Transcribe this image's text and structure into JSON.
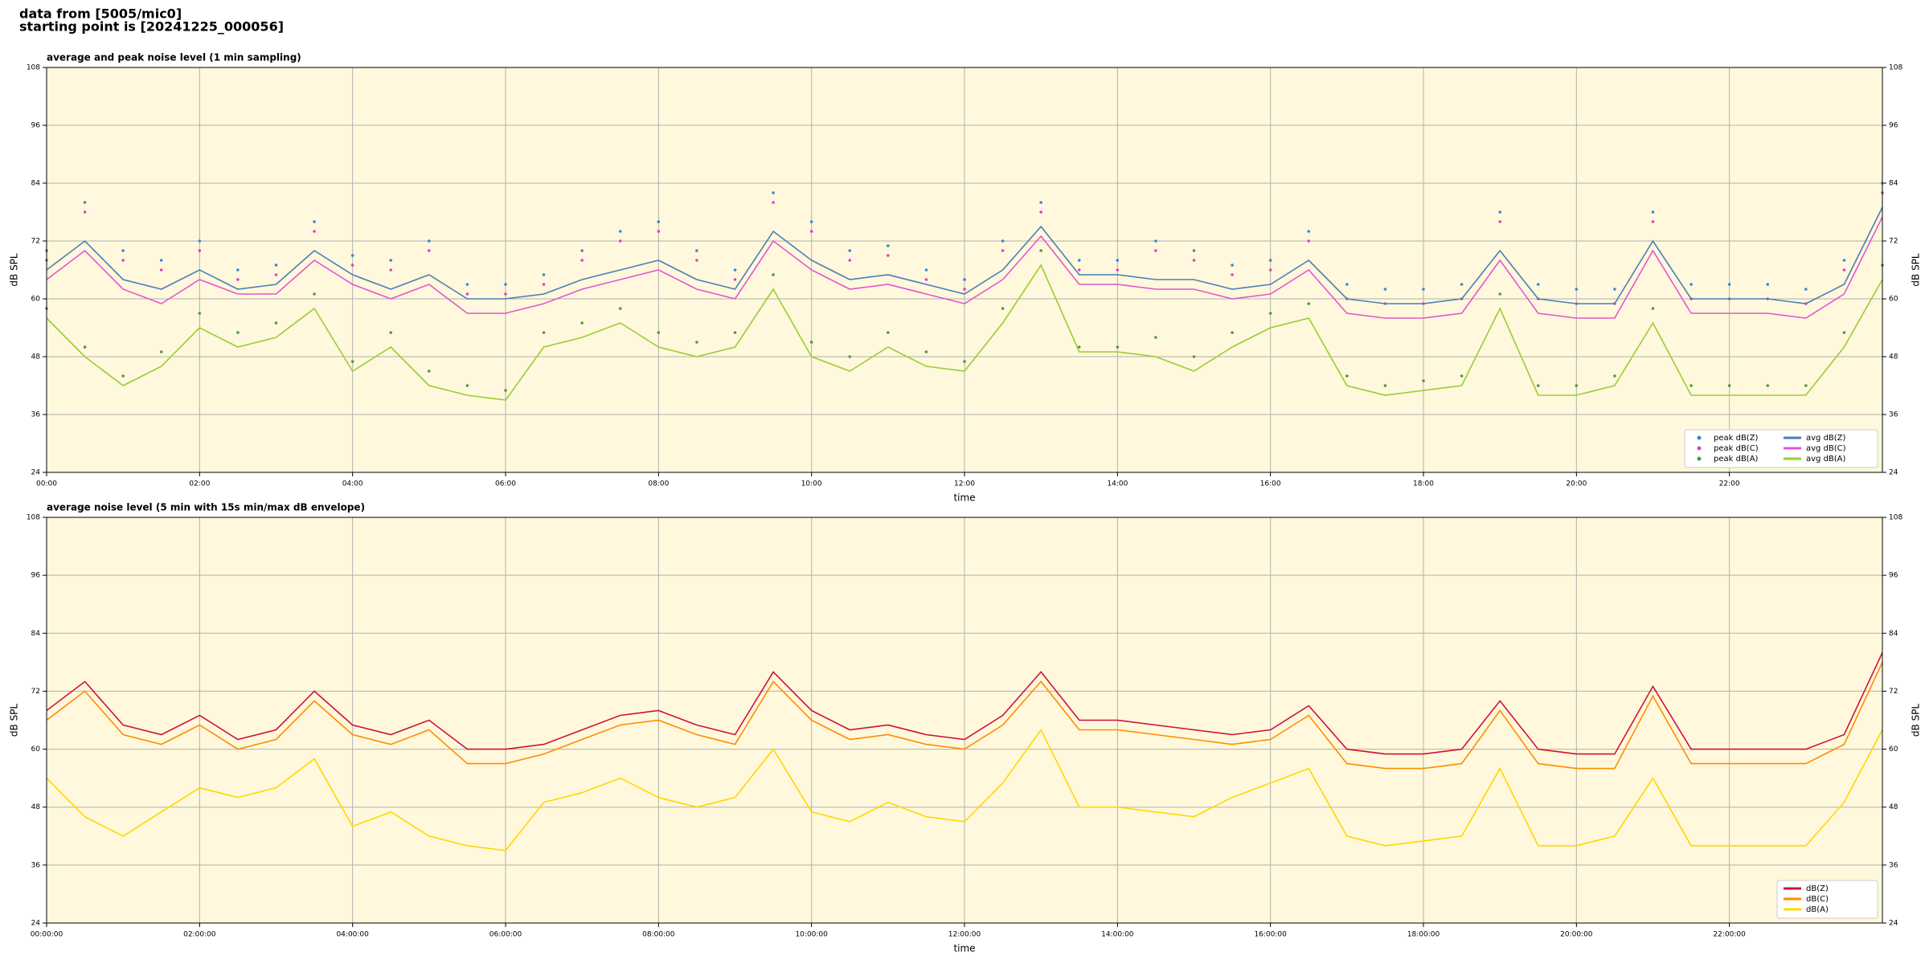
{
  "header": [
    "data from [5005/mic0]",
    "starting point is [20241225_000056]"
  ],
  "chart_data": [
    {
      "type": "line",
      "title": "average and peak noise level (1 min sampling)",
      "x_label": "time",
      "y_label": "dB SPL",
      "xlim": [
        0,
        1440
      ],
      "ylim": [
        24,
        108
      ],
      "yticks": [
        24,
        36,
        48,
        60,
        72,
        84,
        96,
        108
      ],
      "xticks": [
        {
          "value": 0,
          "label": "00:00"
        },
        {
          "value": 120,
          "label": "02:00"
        },
        {
          "value": 240,
          "label": "04:00"
        },
        {
          "value": 360,
          "label": "06:00"
        },
        {
          "value": 480,
          "label": "08:00"
        },
        {
          "value": 600,
          "label": "10:00"
        },
        {
          "value": 720,
          "label": "12:00"
        },
        {
          "value": 840,
          "label": "14:00"
        },
        {
          "value": 960,
          "label": "16:00"
        },
        {
          "value": 1080,
          "label": "18:00"
        },
        {
          "value": 1200,
          "label": "20:00"
        },
        {
          "value": 1320,
          "label": "22:00"
        }
      ],
      "grid": true,
      "legend": "lower right",
      "background": "#fff8dc",
      "x": [
        0,
        30,
        60,
        90,
        120,
        150,
        180,
        210,
        240,
        270,
        300,
        330,
        360,
        390,
        420,
        450,
        480,
        510,
        540,
        570,
        600,
        630,
        660,
        690,
        720,
        750,
        780,
        810,
        840,
        870,
        900,
        930,
        960,
        990,
        1020,
        1050,
        1080,
        1110,
        1140,
        1170,
        1200,
        1230,
        1260,
        1290,
        1320,
        1350,
        1380,
        1410,
        1440
      ],
      "series": [
        {
          "name": "peak dB(Z)",
          "type": "scatter",
          "color": "#3a88c8",
          "values": [
            70,
            80,
            70,
            68,
            72,
            66,
            67,
            76,
            69,
            68,
            72,
            63,
            63,
            65,
            70,
            74,
            76,
            70,
            66,
            82,
            76,
            70,
            71,
            66,
            64,
            72,
            80,
            68,
            68,
            72,
            70,
            67,
            68,
            74,
            63,
            62,
            62,
            63,
            78,
            63,
            62,
            62,
            78,
            63,
            63,
            63,
            62,
            68,
            84
          ]
        },
        {
          "name": "peak dB(C)",
          "type": "scatter",
          "color": "#e040c8",
          "values": [
            68,
            78,
            68,
            66,
            70,
            64,
            65,
            74,
            67,
            66,
            70,
            61,
            61,
            63,
            68,
            72,
            74,
            68,
            64,
            80,
            74,
            68,
            69,
            64,
            62,
            70,
            78,
            66,
            66,
            70,
            68,
            65,
            66,
            72,
            60,
            59,
            59,
            60,
            76,
            60,
            59,
            59,
            76,
            60,
            60,
            60,
            59,
            66,
            82
          ]
        },
        {
          "name": "peak dB(A)",
          "type": "scatter",
          "color": "#4f9a3a",
          "values": [
            58,
            50,
            44,
            49,
            57,
            53,
            55,
            61,
            47,
            53,
            45,
            42,
            41,
            53,
            55,
            58,
            53,
            51,
            53,
            65,
            51,
            48,
            53,
            49,
            47,
            58,
            70,
            50,
            50,
            52,
            48,
            53,
            57,
            59,
            44,
            42,
            43,
            44,
            61,
            42,
            42,
            44,
            58,
            42,
            42,
            42,
            42,
            53,
            67
          ]
        },
        {
          "name": "avg dB(Z)",
          "type": "line",
          "color": "#4a7fb5",
          "values": [
            66,
            72,
            64,
            62,
            66,
            62,
            63,
            70,
            65,
            62,
            65,
            60,
            60,
            61,
            64,
            66,
            68,
            64,
            62,
            74,
            68,
            64,
            65,
            63,
            61,
            66,
            75,
            65,
            65,
            64,
            64,
            62,
            63,
            68,
            60,
            59,
            59,
            60,
            70,
            60,
            59,
            59,
            72,
            60,
            60,
            60,
            59,
            63,
            79
          ]
        },
        {
          "name": "avg dB(C)",
          "type": "line",
          "color": "#e455d0",
          "values": [
            64,
            70,
            62,
            59,
            64,
            61,
            61,
            68,
            63,
            60,
            63,
            57,
            57,
            59,
            62,
            64,
            66,
            62,
            60,
            72,
            66,
            62,
            63,
            61,
            59,
            64,
            73,
            63,
            63,
            62,
            62,
            60,
            61,
            66,
            57,
            56,
            56,
            57,
            68,
            57,
            56,
            56,
            70,
            57,
            57,
            57,
            56,
            61,
            77
          ]
        },
        {
          "name": "avg dB(A)",
          "type": "line",
          "color": "#9acd32",
          "values": [
            56,
            48,
            42,
            46,
            54,
            50,
            52,
            58,
            45,
            50,
            42,
            40,
            39,
            50,
            52,
            55,
            50,
            48,
            50,
            62,
            48,
            45,
            50,
            46,
            45,
            55,
            67,
            49,
            49,
            48,
            45,
            50,
            54,
            56,
            42,
            40,
            41,
            42,
            58,
            40,
            40,
            42,
            55,
            40,
            40,
            40,
            40,
            50,
            64
          ]
        }
      ]
    },
    {
      "type": "line",
      "title": "average noise level (5 min with 15s min/max dB envelope)",
      "x_label": "time",
      "y_label": "dB SPL",
      "xlim": [
        0,
        1440
      ],
      "ylim": [
        24,
        108
      ],
      "yticks": [
        24,
        36,
        48,
        60,
        72,
        84,
        96,
        108
      ],
      "xticks": [
        {
          "value": 0,
          "label": "00:00:00"
        },
        {
          "value": 120,
          "label": "02:00:00"
        },
        {
          "value": 240,
          "label": "04:00:00"
        },
        {
          "value": 360,
          "label": "06:00:00"
        },
        {
          "value": 480,
          "label": "08:00:00"
        },
        {
          "value": 600,
          "label": "10:00:00"
        },
        {
          "value": 720,
          "label": "12:00:00"
        },
        {
          "value": 840,
          "label": "14:00:00"
        },
        {
          "value": 960,
          "label": "16:00:00"
        },
        {
          "value": 1080,
          "label": "18:00:00"
        },
        {
          "value": 1200,
          "label": "20:00:00"
        },
        {
          "value": 1320,
          "label": "22:00:00"
        }
      ],
      "grid": true,
      "legend": "lower right",
      "background": "#fff8dc",
      "x": [
        0,
        30,
        60,
        90,
        120,
        150,
        180,
        210,
        240,
        270,
        300,
        330,
        360,
        390,
        420,
        450,
        480,
        510,
        540,
        570,
        600,
        630,
        660,
        690,
        720,
        750,
        780,
        810,
        840,
        870,
        900,
        930,
        960,
        990,
        1020,
        1050,
        1080,
        1110,
        1140,
        1170,
        1200,
        1230,
        1260,
        1290,
        1320,
        1350,
        1380,
        1410,
        1440
      ],
      "series": [
        {
          "name": "dB(Z)",
          "type": "line",
          "color": "#d0103a",
          "values": [
            68,
            74,
            65,
            63,
            67,
            62,
            64,
            72,
            65,
            63,
            66,
            60,
            60,
            61,
            64,
            67,
            68,
            65,
            63,
            76,
            68,
            64,
            65,
            63,
            62,
            67,
            76,
            66,
            66,
            65,
            64,
            63,
            64,
            69,
            60,
            59,
            59,
            60,
            70,
            60,
            59,
            59,
            73,
            60,
            60,
            60,
            60,
            63,
            80
          ]
        },
        {
          "name": "dB(C)",
          "type": "line",
          "color": "#ff8c00",
          "values": [
            66,
            72,
            63,
            61,
            65,
            60,
            62,
            70,
            63,
            61,
            64,
            57,
            57,
            59,
            62,
            65,
            66,
            63,
            61,
            74,
            66,
            62,
            63,
            61,
            60,
            65,
            74,
            64,
            64,
            63,
            62,
            61,
            62,
            67,
            57,
            56,
            56,
            57,
            68,
            57,
            56,
            56,
            71,
            57,
            57,
            57,
            57,
            61,
            78
          ]
        },
        {
          "name": "dB(A)",
          "type": "line",
          "color": "#ffd700",
          "values": [
            54,
            46,
            42,
            47,
            52,
            50,
            52,
            58,
            44,
            47,
            42,
            40,
            39,
            49,
            51,
            54,
            50,
            48,
            50,
            60,
            47,
            45,
            49,
            46,
            45,
            53,
            64,
            48,
            48,
            47,
            46,
            50,
            53,
            56,
            42,
            40,
            41,
            42,
            56,
            40,
            40,
            42,
            54,
            40,
            40,
            40,
            40,
            49,
            64
          ]
        }
      ]
    }
  ]
}
